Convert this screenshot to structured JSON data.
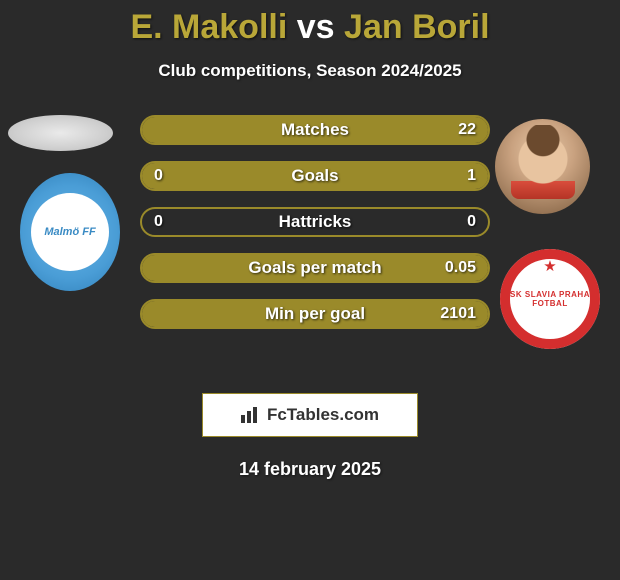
{
  "title": {
    "player1": "E. Makolli",
    "vs": "vs",
    "player2": "Jan Boril",
    "player1_color": "#b9a738",
    "player2_color": "#b9a738"
  },
  "subtitle": "Club competitions, Season 2024/2025",
  "colors": {
    "background": "#2a2a2a",
    "bar_border": "#9a8a2a",
    "bar_fill_right": "#9a8a2a",
    "text": "#ffffff"
  },
  "club_left": {
    "label": "Malmö FF"
  },
  "club_right": {
    "top": "SK SLAVIA PRAHA",
    "bottom": "FOTBAL"
  },
  "bars": [
    {
      "label": "Matches",
      "left": "",
      "right": "22",
      "left_pct": 0,
      "right_pct": 100
    },
    {
      "label": "Goals",
      "left": "0",
      "right": "1",
      "left_pct": 0,
      "right_pct": 100
    },
    {
      "label": "Hattricks",
      "left": "0",
      "right": "0",
      "left_pct": 0,
      "right_pct": 0
    },
    {
      "label": "Goals per match",
      "left": "",
      "right": "0.05",
      "left_pct": 0,
      "right_pct": 100
    },
    {
      "label": "Min per goal",
      "left": "",
      "right": "2101",
      "left_pct": 0,
      "right_pct": 100
    }
  ],
  "logo_text": "FcTables.com",
  "date": "14 february 2025"
}
